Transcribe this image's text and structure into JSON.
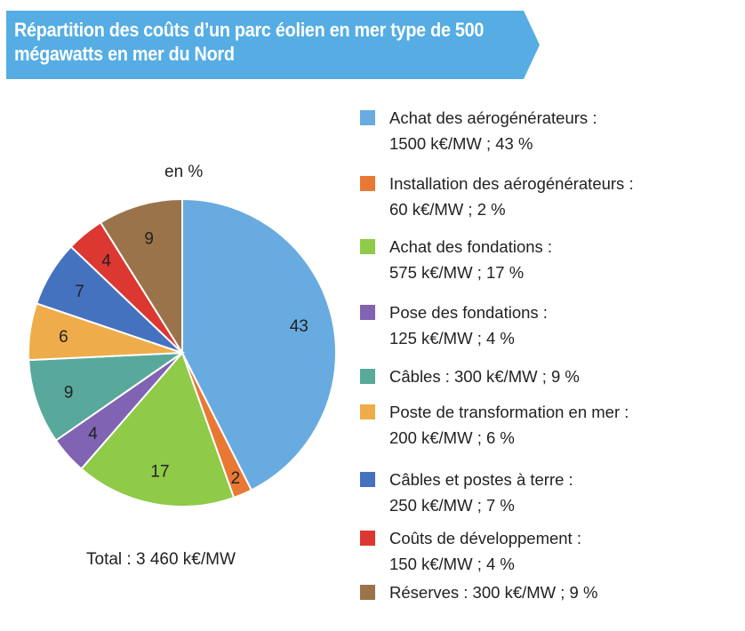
{
  "title": "Répartition des coûts d’un parc éolien en mer type de 500 mégawatts en mer du Nord",
  "unit_label": "en %",
  "total": "Total : 3 460 k€/MW",
  "chart_data": {
    "type": "pie",
    "title": "Répartition des coûts d’un parc éolien en mer type de 500 mégawatts en mer du Nord",
    "legend_position": "right",
    "slices": [
      {
        "label": "Achat des aérogénérateurs",
        "cost": "1500 k€/MW",
        "value": 43,
        "color": "#68abe0",
        "legend_line1": "Achat des aérogénérateurs :",
        "legend_line2": "1500 k€/MW ; 43 %"
      },
      {
        "label": "Installation des aérogénérateurs",
        "cost": "60 k€/MW",
        "value": 2,
        "color": "#e97834",
        "legend_line1": "Installation des aérogénérateurs :",
        "legend_line2": "60 k€/MW ; 2 %"
      },
      {
        "label": "Achat des fondations",
        "cost": "575 k€/MW",
        "value": 17,
        "color": "#8fca48",
        "legend_line1": "Achat des fondations :",
        "legend_line2": "575 k€/MW ; 17 %"
      },
      {
        "label": "Pose des fondations",
        "cost": "125 k€/MW",
        "value": 4,
        "color": "#8063b3",
        "legend_line1": "Pose des fondations :",
        "legend_line2": "125 k€/MW ; 4 %"
      },
      {
        "label": "Câbles",
        "cost": "300 k€/MW",
        "value": 9,
        "color": "#58a99b",
        "legend_line1": "Câbles : 300 k€/MW ; 9 %",
        "legend_line2": ""
      },
      {
        "label": "Poste de transformation en mer",
        "cost": "200 k€/MW",
        "value": 6,
        "color": "#eeac4a",
        "legend_line1": "Poste de transformation en mer :",
        "legend_line2": "200 k€/MW ; 6 %"
      },
      {
        "label": "Câbles et postes à terre",
        "cost": "250 k€/MW",
        "value": 7,
        "color": "#4472bf",
        "legend_line1": "Câbles et postes à terre :",
        "legend_line2": "250 k€/MW ; 7 %"
      },
      {
        "label": "Coûts de développement",
        "cost": "150 k€/MW",
        "value": 4,
        "color": "#dc3731",
        "legend_line1": "Coûts de développement :",
        "legend_line2": "150 k€/MW ; 4 %"
      },
      {
        "label": "Réserves",
        "cost": "300 k€/MW",
        "value": 9,
        "color": "#9b734a",
        "legend_line1": "Réserves : 300 k€/MW ; 9 %",
        "legend_line2": ""
      }
    ]
  }
}
